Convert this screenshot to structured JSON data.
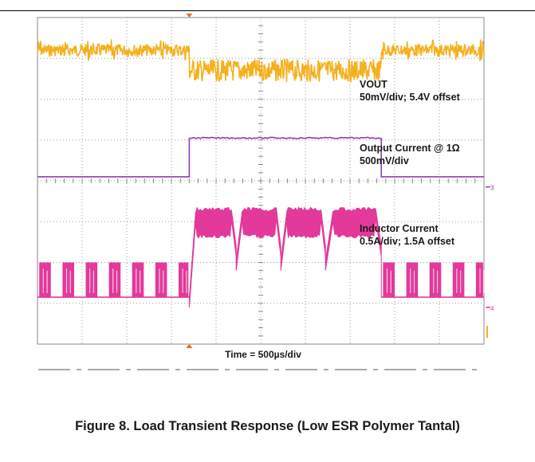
{
  "chart_data": {
    "type": "line",
    "title": "Figure 8. Load Transient Response (Low ESR Polymer Tantal)",
    "xlabel": "Time = 500µs/div",
    "grid": true,
    "x_divisions": 10,
    "y_divisions": 8,
    "x_unit": "µs",
    "x_per_div": 500,
    "load_step_on_div": 3.4,
    "load_step_off_div": 7.7,
    "series": [
      {
        "name": "VOUT",
        "scale": "50mV/div; 5.4V offset",
        "color": "#f5b01e",
        "level_light_load_div": 0.8,
        "level_heavy_load_div": 1.3,
        "ripple_light_load_div": 0.3,
        "ripple_heavy_load_div": 0.55
      },
      {
        "name": "Output Current @ 1Ω",
        "scale": "500mV/div",
        "color": "#8b3fb0",
        "level_low_div": 3.9,
        "level_high_div": 2.95,
        "channel_marker": "3"
      },
      {
        "name": "Inductor Current",
        "scale": "0.5A/div; 1.5A offset",
        "color": "#e2399b",
        "burst_low_div": 6.85,
        "burst_high_div": 6.0,
        "heavy_peak_div": 4.7,
        "heavy_sag_div": 5.35,
        "channel_marker": "4"
      }
    ],
    "labels": {
      "vout": [
        "VOUT",
        "50mV/div; 5.4V offset"
      ],
      "iout": [
        "Output Current @ 1Ω",
        "500mV/div"
      ],
      "il": [
        "Inductor Current",
        "0.5A/div; 1.5A offset"
      ]
    }
  },
  "caption": "Figure 8. Load Transient Response (Low ESR Polymer Tantal)"
}
